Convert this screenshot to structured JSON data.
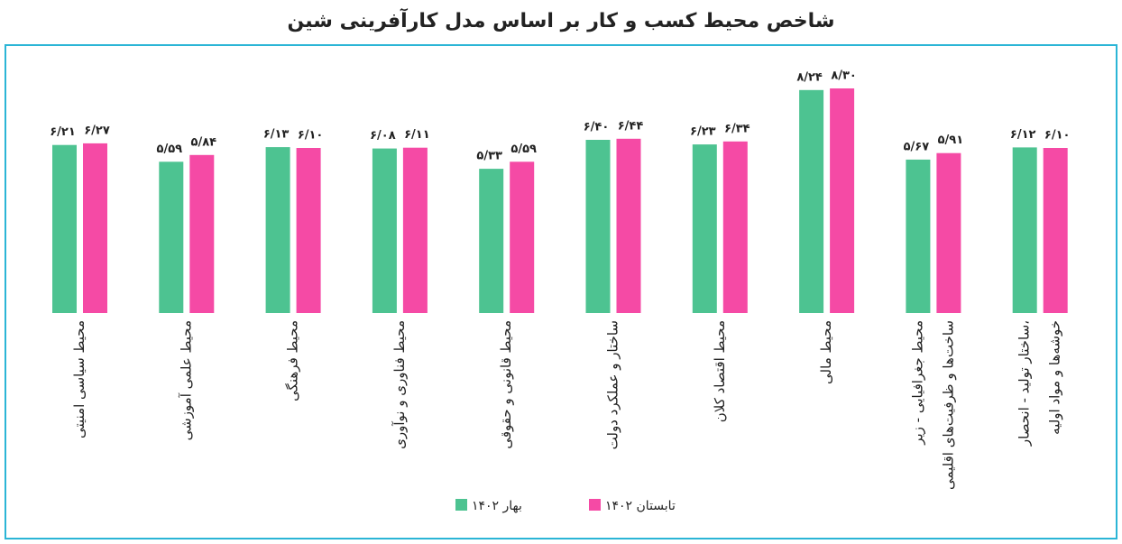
{
  "chart_data": {
    "type": "bar",
    "title": "شاخص محیط کسب و کار بر اساس مدل کارآفرینی شین",
    "categories": [
      [
        "محیط سیاسی امنیتی"
      ],
      [
        "محیط علمی آموزشی"
      ],
      [
        "محیط فرهنگی"
      ],
      [
        "محیط فناوری و نوآوری"
      ],
      [
        "محیط قانونی و حقوقی"
      ],
      [
        "ساختار و عملکرد دولت"
      ],
      [
        "محیط اقتصاد کلان"
      ],
      [
        "محیط مالی"
      ],
      [
        "محیط جغرافیایی - زیر",
        "ساخت‌ها و ظرفیت‌های اقلیمی"
      ],
      [
        "ساختار تولید - انحصار،",
        "خوشه‌ها و مواد اولیه"
      ]
    ],
    "series": [
      {
        "name": "بهار ۱۴۰۲",
        "color": "#4dc391",
        "label_color": "#3d6b2b",
        "values": [
          6.21,
          5.59,
          6.13,
          6.08,
          5.33,
          6.4,
          6.23,
          8.24,
          5.67,
          6.12
        ],
        "value_labels": [
          "۶/۲۱",
          "۵/۵۹",
          "۶/۱۳",
          "۶/۰۸",
          "۵/۳۳",
          "۶/۴۰",
          "۶/۲۳",
          "۸/۲۴",
          "۵/۶۷",
          "۶/۱۲"
        ]
      },
      {
        "name": "تابستان ۱۴۰۲",
        "color": "#f54aa5",
        "label_color": "#a32a2e",
        "values": [
          6.27,
          5.84,
          6.1,
          6.11,
          5.59,
          6.44,
          6.34,
          8.3,
          5.91,
          6.1
        ],
        "value_labels": [
          "۶/۲۷",
          "۵/۸۴",
          "۶/۱۰",
          "۶/۱۱",
          "۵/۵۹",
          "۶/۴۴",
          "۶/۳۴",
          "۸/۳۰",
          "۵/۹۱",
          "۶/۱۰"
        ]
      }
    ]
  }
}
